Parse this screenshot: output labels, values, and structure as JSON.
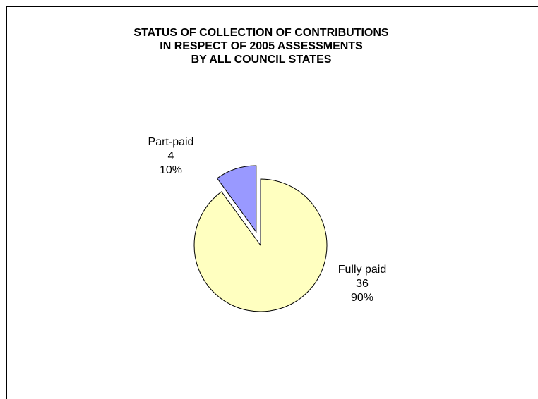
{
  "chart_data": {
    "type": "pie",
    "title": [
      "STATUS OF COLLECTION OF CONTRIBUTIONS",
      "IN RESPECT OF 2005 ASSESSMENTS",
      "BY ALL COUNCIL STATES"
    ],
    "slices": [
      {
        "label": "Fully paid",
        "value": 36,
        "percent_label": "90%",
        "color": "#ffffc0",
        "exploded": false
      },
      {
        "label": "Part-paid",
        "value": 4,
        "percent_label": "10%",
        "color": "#9999ff",
        "exploded": true
      }
    ],
    "legend": "none"
  }
}
